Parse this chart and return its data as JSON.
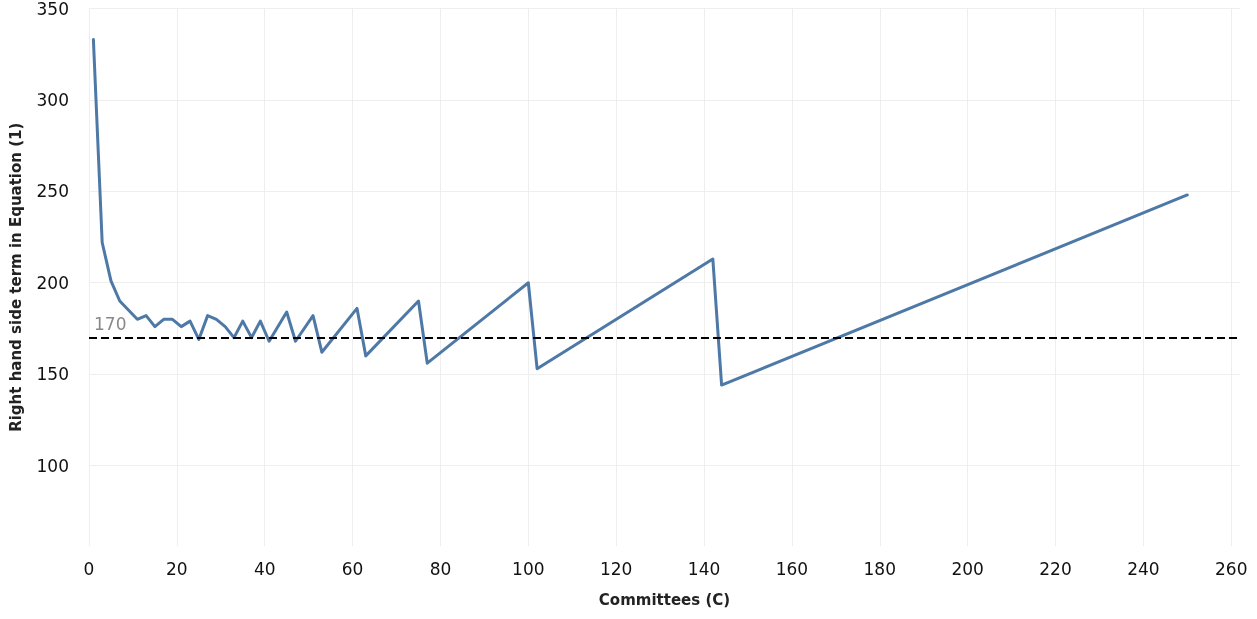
{
  "chart_data": {
    "type": "line",
    "xlabel": "Committees (C)",
    "ylabel": "Right hand side term in Equation (1)",
    "x": [
      1,
      3,
      5,
      7,
      11,
      13,
      15,
      17,
      19,
      21,
      23,
      25,
      27,
      29,
      31,
      33,
      35,
      37,
      39,
      41,
      45,
      47,
      51,
      53,
      61,
      63,
      75,
      77,
      100,
      102,
      142,
      144,
      250
    ],
    "series": [
      {
        "color": "#4e79a7",
        "values": [
          333,
          222,
          201,
          190,
          180,
          182,
          176,
          180,
          180,
          176,
          179,
          169,
          182,
          180,
          176,
          170,
          179,
          170,
          179,
          168,
          184,
          168,
          182,
          162,
          186,
          160,
          190,
          156,
          200,
          153,
          213,
          144,
          248
        ]
      }
    ],
    "xlim": [
      0,
      262
    ],
    "xticks": [
      0,
      20,
      40,
      60,
      80,
      100,
      120,
      140,
      160,
      180,
      200,
      220,
      240,
      260
    ],
    "ylim": [
      56,
      350
    ],
    "yticks": [
      100,
      150,
      200,
      250,
      300,
      350
    ],
    "ref_lines": [
      {
        "axis": "y",
        "value": 170,
        "label": "170",
        "color": "#000000",
        "line_style": "dashed"
      }
    ],
    "grid": true,
    "marker": "none",
    "line_style": "solid"
  }
}
